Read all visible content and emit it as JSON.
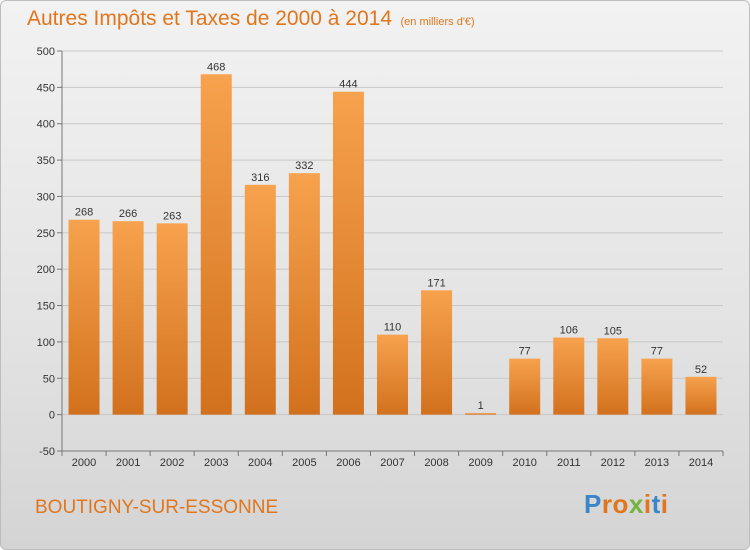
{
  "header": {
    "title": "Autres Impôts et Taxes de 2000 à 2014",
    "subtitle": "(en milliers d'€)"
  },
  "footer": {
    "location": "BOUTIGNY-SUR-ESSONNE",
    "logo": "Proxiti"
  },
  "colors": {
    "accent": "#e0761d",
    "bar_light": "#f7a24e",
    "bar_dark": "#d2711d",
    "logo_letters": [
      "#3a86c8",
      "#e0761d",
      "#e0761d",
      "#74b43c",
      "#e0761d",
      "#3a86c8",
      "#e0761d"
    ]
  },
  "chart_data": {
    "type": "bar",
    "title": "Autres Impôts et Taxes de 2000 à 2014",
    "subtitle": "(en milliers d'€)",
    "xlabel": "",
    "ylabel": "",
    "categories": [
      "2000",
      "2001",
      "2002",
      "2003",
      "2004",
      "2005",
      "2006",
      "2007",
      "2008",
      "2009",
      "2010",
      "2011",
      "2012",
      "2013",
      "2014"
    ],
    "values": [
      268,
      266,
      263,
      468,
      316,
      332,
      444,
      110,
      171,
      1,
      77,
      106,
      105,
      77,
      52
    ],
    "ylim": [
      -50,
      500
    ],
    "yticks": [
      -50,
      0,
      50,
      100,
      150,
      200,
      250,
      300,
      350,
      400,
      450,
      500
    ],
    "grid": true,
    "data_labels": true
  }
}
